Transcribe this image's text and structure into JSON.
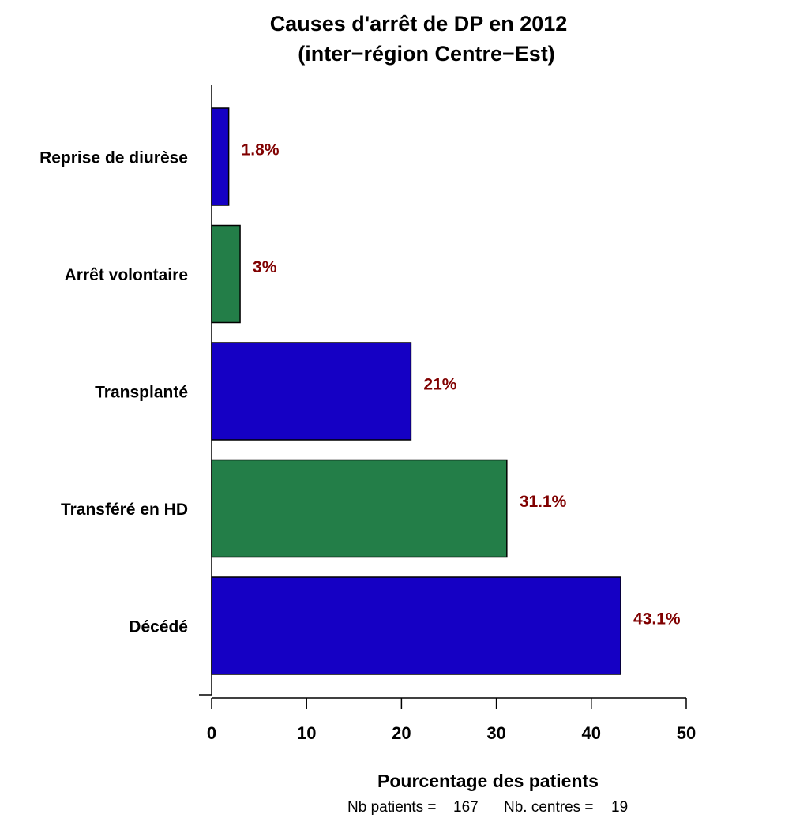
{
  "chart_data": {
    "type": "bar",
    "orientation": "horizontal",
    "title": "Causes d'arrêt de DP en 2012",
    "subtitle": "(inter−région Centre−Est)",
    "xlabel": "Pourcentage des patients",
    "ylabel": "",
    "xlim": [
      0,
      50
    ],
    "xticks": [
      0,
      10,
      20,
      30,
      40,
      50
    ],
    "grid": false,
    "categories": [
      "Reprise de diurèse",
      "Arrêt volontaire",
      "Transplanté",
      "Transféré en HD",
      "Décédé"
    ],
    "values": [
      1.8,
      3,
      21,
      31.1,
      43.1
    ],
    "value_labels": [
      "1.8%",
      "3%",
      "21%",
      "31.1%",
      "43.1%"
    ],
    "bar_colors": [
      "#1500c4",
      "#237e48",
      "#1500c4",
      "#237e48",
      "#1500c4"
    ],
    "label_color": "#800000"
  },
  "footer": {
    "patients_label": "Nb patients =",
    "patients_value": "167",
    "centres_label": "Nb. centres =",
    "centres_value": "19"
  }
}
